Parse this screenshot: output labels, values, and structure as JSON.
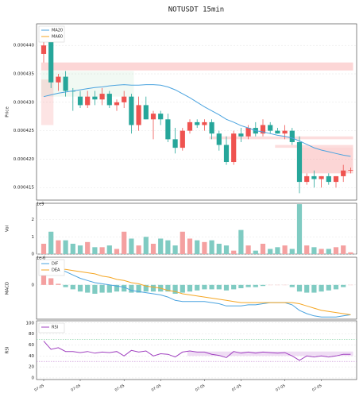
{
  "chart_data": [
    {
      "type": "candlestick",
      "title": "NOTUSDT  15min",
      "ylabel": "Price",
      "up_color": "#ef5350",
      "down_color": "#26a69a",
      "ylim": [
        0.0004128,
        0.0004438
      ],
      "yticks": [
        {
          "value": 0.000415,
          "label": "0.000415"
        },
        {
          "value": 0.00042,
          "label": "0.000420"
        },
        {
          "value": 0.000425,
          "label": "0.000425"
        },
        {
          "value": 0.00043,
          "label": "0.000430"
        },
        {
          "value": 0.000435,
          "label": "0.000435"
        },
        {
          "value": 0.00044,
          "label": "0.000440"
        }
      ],
      "open": [
        0.0004385,
        0.000441,
        0.0004335,
        0.0004345,
        0.000432,
        0.000431,
        0.0004295,
        0.000431,
        0.0004305,
        0.0004315,
        0.0004295,
        0.00043,
        0.000431,
        0.000426,
        0.0004295,
        0.000427,
        0.000428,
        0.000427,
        0.0004235,
        0.000422,
        0.000425,
        0.0004265,
        0.000426,
        0.0004265,
        0.0004245,
        0.0004225,
        0.0004195,
        0.0004245,
        0.000424,
        0.0004255,
        0.0004245,
        0.000426,
        0.000425,
        0.0004245,
        0.000425,
        0.000423,
        0.000416,
        0.000417,
        0.0004165,
        0.000417,
        0.000416,
        0.000417,
        0.000418
      ],
      "high": [
        0.000441,
        0.0004415,
        0.000435,
        0.0004355,
        0.0004325,
        0.000432,
        0.000432,
        0.000432,
        0.0004325,
        0.000432,
        0.0004305,
        0.000432,
        0.0004315,
        0.000431,
        0.000431,
        0.0004285,
        0.0004285,
        0.000428,
        0.0004255,
        0.0004255,
        0.000427,
        0.000427,
        0.000427,
        0.000427,
        0.000425,
        0.000424,
        0.000425,
        0.0004255,
        0.000426,
        0.0004265,
        0.000427,
        0.0004265,
        0.0004255,
        0.000426,
        0.0004255,
        0.000424,
        0.0004175,
        0.000418,
        0.000417,
        0.0004175,
        0.000417,
        0.000419,
        0.0004185
      ],
      "low": [
        0.000437,
        0.0004325,
        0.000432,
        0.000431,
        0.0004285,
        0.000429,
        0.000429,
        0.0004295,
        0.0004295,
        0.000429,
        0.0004285,
        0.000429,
        0.0004245,
        0.000425,
        0.000427,
        0.0004235,
        0.000426,
        0.000423,
        0.000421,
        0.0004215,
        0.0004245,
        0.0004255,
        0.000425,
        0.0004235,
        0.0004215,
        0.000419,
        0.000419,
        0.000423,
        0.0004235,
        0.000424,
        0.000424,
        0.0004245,
        0.0004245,
        0.0004235,
        0.0004225,
        0.000414,
        0.0004155,
        0.000415,
        0.000415,
        0.0004155,
        0.000415,
        0.000416,
        0.0004175
      ],
      "close": [
        0.00044,
        0.0004335,
        0.0004345,
        0.000432,
        0.0004319,
        0.0004295,
        0.000431,
        0.0004305,
        0.0004315,
        0.0004295,
        0.00043,
        0.000431,
        0.000426,
        0.0004295,
        0.000427,
        0.000428,
        0.000427,
        0.0004235,
        0.000422,
        0.000425,
        0.0004265,
        0.000426,
        0.0004265,
        0.0004245,
        0.0004225,
        0.0004195,
        0.0004245,
        0.000424,
        0.0004255,
        0.0004245,
        0.000426,
        0.000425,
        0.0004245,
        0.000425,
        0.000423,
        0.000416,
        0.000417,
        0.0004165,
        0.000417,
        0.000416,
        0.000417,
        0.000418,
        0.0004181
      ],
      "series": [
        {
          "name": "MA20",
          "color": "#4aa3df",
          "values": [
            0.000431,
            0.0004313,
            0.0004316,
            0.0004318,
            0.000432,
            0.0004322,
            0.0004324,
            0.0004326,
            0.0004327,
            0.0004329,
            0.000433,
            0.0004331,
            0.000433,
            0.000433,
            0.0004331,
            0.0004331,
            0.000433,
            0.0004327,
            0.0004322,
            0.0004315,
            0.0004308,
            0.00043,
            0.0004292,
            0.0004285,
            0.0004278,
            0.000427,
            0.0004265,
            0.0004259,
            0.0004255,
            0.000425,
            0.0004248,
            0.0004245,
            0.0004242,
            0.000424,
            0.0004237,
            0.0004232,
            0.0004226,
            0.000422,
            0.0004216,
            0.0004213,
            0.000421,
            0.0004207,
            0.0004205
          ]
        },
        {
          "name": "MA60",
          "color": "#f5a623",
          "values": [
            null,
            null,
            null,
            null,
            null,
            null,
            null,
            null,
            null,
            null,
            null,
            null,
            null,
            null,
            null,
            null,
            null,
            null,
            null,
            null,
            null,
            null,
            null,
            null,
            null,
            null,
            null,
            null,
            null,
            null,
            null,
            null,
            null,
            null,
            null,
            null,
            null,
            null,
            null,
            null,
            null,
            null,
            null
          ]
        }
      ],
      "zones": [
        {
          "low": 0.0004356,
          "high": 0.000437,
          "from": 0,
          "to": 42,
          "color": "rgba(244,120,120,0.3)"
        },
        {
          "low": 0.000431,
          "high": 0.0004355,
          "from": 0,
          "to": 12,
          "color": "rgba(120,200,140,0.1)"
        },
        {
          "low": 0.000426,
          "high": 0.000434,
          "from": 0,
          "to": 1,
          "color": "rgba(244,120,120,0.2)"
        },
        {
          "low": 0.0004175,
          "high": 0.000422,
          "from": 35,
          "to": 42,
          "color": "rgba(244,120,120,0.3)"
        },
        {
          "low": 0.0004235,
          "high": 0.000424,
          "from": 23,
          "to": 42,
          "color": "rgba(244,120,120,0.25)"
        },
        {
          "low": 0.000422,
          "high": 0.0004225,
          "from": 32,
          "to": 42,
          "color": "rgba(244,120,120,0.25)"
        }
      ]
    },
    {
      "type": "volume",
      "ylabel": "Vol",
      "offset_label": "1e9",
      "up_color": "#f4a0a0",
      "down_color": "#7fcbc2",
      "ylim": [
        0,
        2.95
      ],
      "yticks": [
        0,
        1,
        2
      ],
      "values": [
        0.6,
        1.3,
        0.8,
        0.8,
        0.6,
        0.5,
        0.7,
        0.4,
        0.4,
        0.5,
        0.3,
        1.3,
        0.9,
        0.5,
        1.0,
        0.6,
        0.9,
        0.8,
        0.5,
        1.3,
        0.9,
        0.8,
        0.7,
        0.8,
        0.6,
        0.5,
        0.2,
        1.4,
        0.5,
        0.2,
        0.6,
        0.3,
        0.4,
        0.5,
        0.3,
        2.9,
        0.5,
        0.4,
        0.3,
        0.3,
        0.4,
        0.5,
        0.1
      ]
    },
    {
      "type": "macd",
      "ylabel": "MACD",
      "offset_label": "1e-6",
      "up_color": "#f4a0a0",
      "down_color": "#7fcbc2",
      "ylim": [
        -3.1,
        2.5
      ],
      "yticks": [
        0
      ],
      "histogram": [
        1.1,
        0.6,
        0.1,
        -0.2,
        -0.4,
        -0.6,
        -0.7,
        -0.8,
        -0.7,
        -0.7,
        -0.6,
        -0.6,
        -0.7,
        -0.7,
        -0.6,
        -0.6,
        -0.6,
        -0.6,
        -0.8,
        -0.7,
        -0.6,
        -0.5,
        -0.4,
        -0.4,
        -0.4,
        -0.5,
        -0.4,
        -0.3,
        -0.2,
        -0.2,
        -0.1,
        0,
        0,
        0,
        -0.2,
        -0.6,
        -0.7,
        -0.7,
        -0.6,
        -0.5,
        -0.4,
        -0.2,
        0
      ],
      "series": [
        {
          "name": "DIF",
          "color": "#4aa3df",
          "values": [
            2.2,
            1.9,
            1.5,
            1.2,
            0.9,
            0.6,
            0.4,
            0.2,
            0.1,
            0,
            -0.1,
            -0.2,
            -0.5,
            -0.6,
            -0.7,
            -0.8,
            -0.9,
            -1.1,
            -1.4,
            -1.5,
            -1.5,
            -1.5,
            -1.5,
            -1.6,
            -1.7,
            -1.9,
            -1.9,
            -1.9,
            -1.8,
            -1.8,
            -1.7,
            -1.6,
            -1.6,
            -1.6,
            -1.8,
            -2.3,
            -2.6,
            -2.8,
            -2.9,
            -2.9,
            -2.9,
            -2.8,
            -2.7
          ]
        },
        {
          "name": "DEA",
          "color": "#f5a623",
          "values": [
            1.1,
            1.3,
            1.4,
            1.4,
            1.3,
            1.2,
            1.1,
            1.0,
            0.8,
            0.7,
            0.5,
            0.4,
            0.2,
            0.1,
            -0.1,
            -0.2,
            -0.3,
            -0.5,
            -0.6,
            -0.8,
            -0.9,
            -1.0,
            -1.1,
            -1.2,
            -1.3,
            -1.4,
            -1.5,
            -1.6,
            -1.6,
            -1.6,
            -1.6,
            -1.6,
            -1.6,
            -1.6,
            -1.6,
            -1.7,
            -1.9,
            -2.1,
            -2.3,
            -2.4,
            -2.5,
            -2.6,
            -2.7
          ]
        }
      ]
    },
    {
      "type": "line",
      "ylabel": "RSI",
      "ylim": [
        -3,
        104
      ],
      "yticks": [
        0,
        20,
        40,
        60,
        80,
        100
      ],
      "categories": [
        "07-05",
        null,
        null,
        null,
        null,
        "07-05",
        null,
        null,
        null,
        null,
        null,
        "07-05",
        null,
        null,
        null,
        null,
        "07-05",
        null,
        null,
        null,
        null,
        null,
        "07-05",
        null,
        null,
        null,
        null,
        "07-05",
        null,
        null,
        null,
        null,
        null,
        "07-05",
        null,
        null,
        null,
        null,
        "07-05",
        null,
        null,
        null,
        null
      ],
      "series": [
        {
          "name": "RSI",
          "color": "#a040c0",
          "values": [
            67,
            52,
            55,
            48,
            48,
            46,
            48,
            45,
            47,
            46,
            48,
            40,
            50,
            47,
            49,
            40,
            44,
            43,
            38,
            47,
            49,
            47,
            47,
            43,
            41,
            37,
            48,
            45,
            47,
            45,
            47,
            46,
            45,
            46,
            40,
            32,
            40,
            38,
            40,
            38,
            40,
            43,
            43
          ]
        }
      ],
      "ref_lines": [
        {
          "value": 70,
          "color": "#7fcf9f"
        },
        {
          "value": 30,
          "color": "#c080d0"
        }
      ],
      "zones": [
        {
          "low": 40,
          "high": 48,
          "from": 20,
          "to": 42,
          "color": "rgba(190,120,210,0.25)"
        }
      ]
    }
  ]
}
